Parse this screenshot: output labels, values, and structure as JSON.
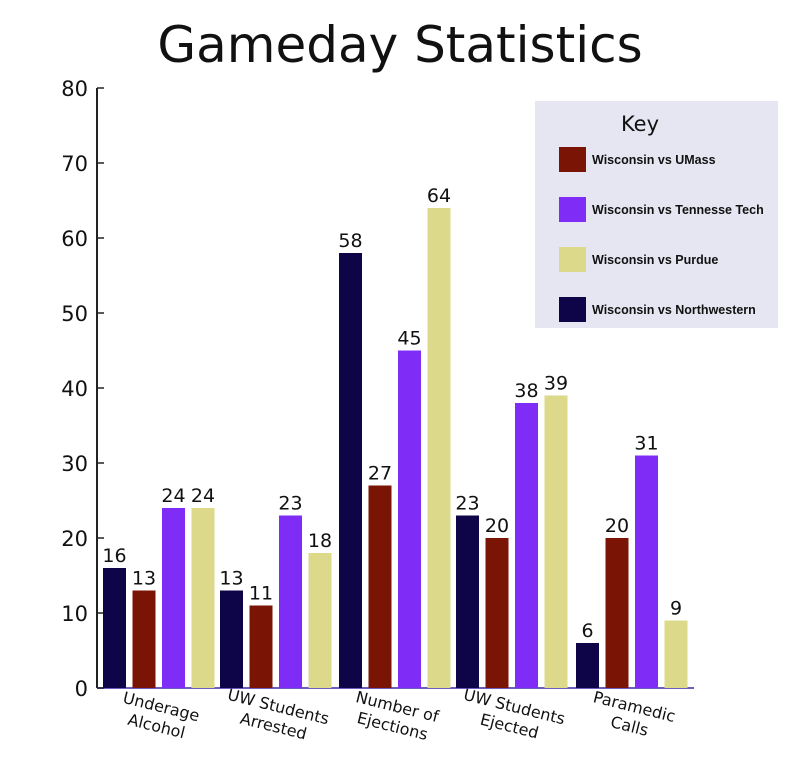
{
  "chart_data": {
    "type": "bar",
    "title": "Gameday Statistics",
    "xlabel": "",
    "ylabel": "",
    "ylim": [
      0,
      80
    ],
    "yticks": [
      0,
      10,
      20,
      30,
      40,
      50,
      60,
      70,
      80
    ],
    "grid": false,
    "legend_placement": "top-right",
    "legend_title": "Key",
    "categories": [
      [
        "Underage",
        "Alcohol"
      ],
      [
        "UW Students",
        "Arrested"
      ],
      [
        "Number of",
        "Ejections"
      ],
      [
        "UW Students",
        "Ejected"
      ],
      [
        "Paramedic",
        "Calls"
      ]
    ],
    "series": [
      {
        "name": "Wisconsin vs Northwestern",
        "color": "#0e0448",
        "values": [
          16,
          13,
          58,
          23,
          6
        ]
      },
      {
        "name": "Wisconsin vs UMass",
        "color": "#7a1405",
        "values": [
          13,
          11,
          27,
          20,
          20
        ]
      },
      {
        "name": "Wisconsin vs Tennesse Tech",
        "color": "#7f2cf7",
        "values": [
          24,
          23,
          45,
          38,
          31
        ]
      },
      {
        "name": "Wisconsin vs Purdue",
        "color": "#dcd98b",
        "values": [
          24,
          18,
          64,
          39,
          9
        ]
      }
    ],
    "legend_order": [
      "Wisconsin vs UMass",
      "Wisconsin vs Tennesse Tech",
      "Wisconsin vs Purdue",
      "Wisconsin vs Northwestern"
    ],
    "legend_background": "#e6e6f2"
  }
}
